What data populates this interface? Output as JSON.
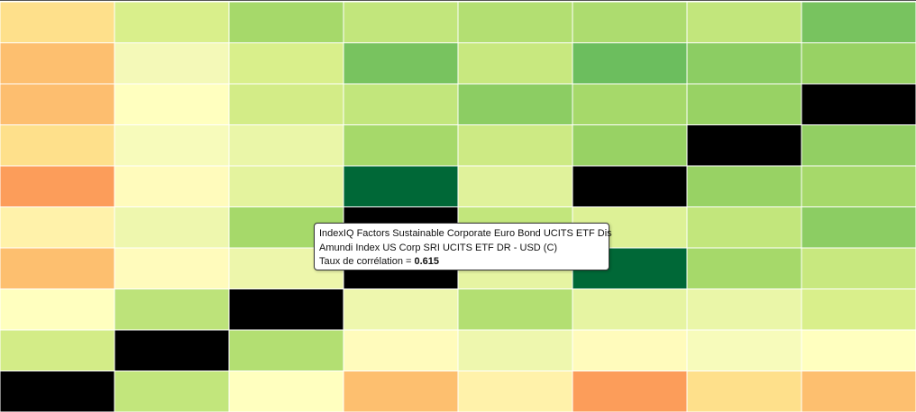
{
  "chart_data": {
    "type": "heatmap",
    "title": "",
    "xlabel": "",
    "ylabel": "",
    "color_scale": {
      "low": "#f46d43",
      "mid": "#ffffbf",
      "high": "#006837",
      "self": "#000000"
    },
    "cell_colors": [
      [
        "#fee08b",
        "#d9ef8b",
        "#a6d96a",
        "#c2e67c",
        "#b3df72",
        "#addc6f",
        "#c2e67c",
        "#78c35f"
      ],
      [
        "#fdbf6f",
        "#f4f9b8",
        "#d9ef8b",
        "#78c35f",
        "#c8e87f",
        "#6cbe5e",
        "#8ccd63",
        "#98d264"
      ],
      [
        "#fdbe6f",
        "#ffffbf",
        "#d3ec87",
        "#c2e67c",
        "#8ccd63",
        "#a6d96a",
        "#98d264",
        "#000000"
      ],
      [
        "#fee08b",
        "#f7fbbb",
        "#eaf6a8",
        "#a6d96a",
        "#cdea84",
        "#98d264",
        "#000000",
        "#92cf63"
      ],
      [
        "#fc9d5a",
        "#fffbbc",
        "#e4f39e",
        "#006837",
        "#e0f29b",
        "#000000",
        "#98d264",
        "#a6d96a"
      ],
      [
        "#fff2aa",
        "#eef7ae",
        "#a6d96a",
        "#000000",
        "#c2e67c",
        "#ddf196",
        "#c2e67c",
        "#8ccd63"
      ],
      [
        "#fdbf6f",
        "#fffbbc",
        "#edf6ab",
        "#000000",
        "#e6f4a2",
        "#006837",
        "#a6d96a",
        "#c8e87f"
      ],
      [
        "#ffffbf",
        "#bde37a",
        "#000000",
        "#eef7ae",
        "#b3df72",
        "#e6f4a2",
        "#eaf6a8",
        "#d9ef8b"
      ],
      [
        "#d3ec87",
        "#000000",
        "#b3df72",
        "#fffbbc",
        "#eef7ae",
        "#fffbbc",
        "#f7fbbb",
        "#ffffbf"
      ],
      [
        "#000000",
        "#c2e67c",
        "#ffffbf",
        "#fdbf6f",
        "#fff2aa",
        "#fc9d5a",
        "#fee08b",
        "#fdbf6f"
      ]
    ],
    "tooltip": {
      "row_label": "IndexIQ Factors Sustainable Corporate Euro Bond UCITS ETF Dis",
      "col_label": "Amundi Index US Corp SRI UCITS ETF DR - USD (C)",
      "value_prefix": "Taux de corrélation = ",
      "value": "0.615"
    }
  }
}
